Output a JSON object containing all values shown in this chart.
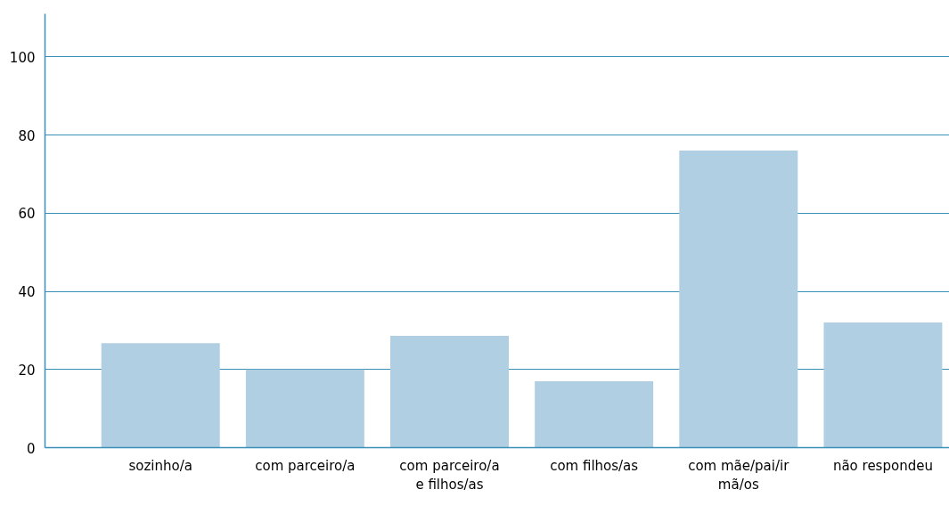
{
  "chart_data": {
    "type": "bar",
    "categories": [
      "sozinho/a",
      "com parceiro/a",
      "com parceiro/a e filhos/as",
      "com filhos/as",
      "com mãe/pai/irmã/os",
      "não respondeu"
    ],
    "values": [
      26.7,
      20,
      28.6,
      17,
      76,
      32
    ],
    "color": "#b0cfe2",
    "ylim": [
      0,
      111
    ],
    "yticks": [
      0,
      20,
      40,
      60,
      80,
      100
    ],
    "grid": "y"
  }
}
